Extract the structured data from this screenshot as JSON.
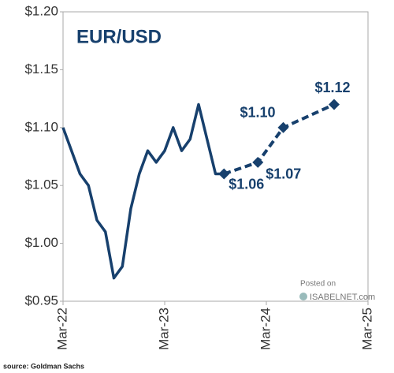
{
  "chart_data": {
    "type": "line",
    "title": "EUR/USD",
    "xlim": [
      "2022-03",
      "2025-03"
    ],
    "xticks": [
      {
        "value": "2022-03",
        "label": "Mar-22"
      },
      {
        "value": "2023-03",
        "label": "Mar-23"
      },
      {
        "value": "2024-03",
        "label": "Mar-24"
      },
      {
        "value": "2025-03",
        "label": "Mar-25"
      }
    ],
    "ylim": [
      0.95,
      1.2
    ],
    "yticks": [
      {
        "value": 0.95,
        "label": "$0.95"
      },
      {
        "value": 1.0,
        "label": "$1.00"
      },
      {
        "value": 1.05,
        "label": "$1.05"
      },
      {
        "value": 1.1,
        "label": "$1.10"
      },
      {
        "value": 1.15,
        "label": "$1.15"
      },
      {
        "value": 1.2,
        "label": "$1.20"
      }
    ],
    "series": [
      {
        "color": "#17406d",
        "dashed": false,
        "x": [
          "2022-03",
          "2022-04",
          "2022-05",
          "2022-06",
          "2022-07",
          "2022-08",
          "2022-09",
          "2022-10",
          "2022-11",
          "2022-12",
          "2023-01",
          "2023-02",
          "2023-03",
          "2023-04",
          "2023-05",
          "2023-06",
          "2023-07",
          "2023-08",
          "2023-09",
          "2023-10"
        ],
        "values": [
          1.1,
          1.08,
          1.06,
          1.05,
          1.02,
          1.01,
          0.97,
          0.98,
          1.03,
          1.06,
          1.08,
          1.07,
          1.08,
          1.1,
          1.08,
          1.09,
          1.12,
          1.09,
          1.06,
          1.06
        ]
      },
      {
        "color": "#17406d",
        "dashed": true,
        "x": [
          "2023-10",
          "2024-02",
          "2024-05",
          "2024-11"
        ],
        "values": [
          1.06,
          1.07,
          1.1,
          1.12
        ],
        "value_labels": [
          "$1.06",
          "$1.07",
          "$1.10",
          "$1.12"
        ]
      }
    ],
    "annotations": [
      "Posted on",
      "ISABELNET.com"
    ],
    "source": "source: Goldman Sachs"
  }
}
